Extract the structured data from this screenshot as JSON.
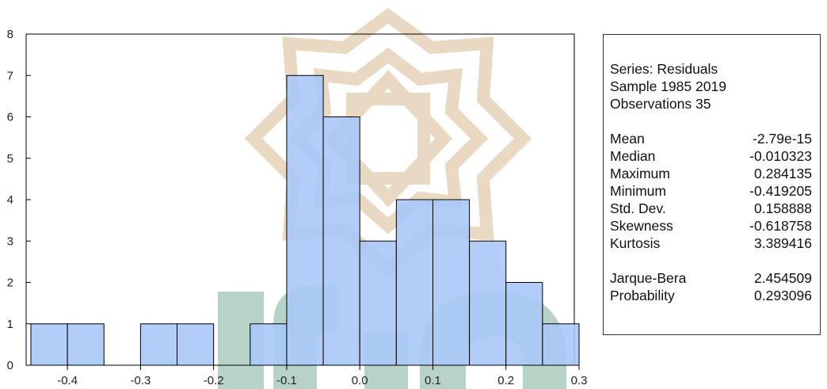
{
  "chart_data": {
    "type": "bar",
    "subtype": "histogram",
    "bin_width": 0.05,
    "bins": [
      {
        "x0": -0.45,
        "x1": -0.4,
        "count": 1
      },
      {
        "x0": -0.4,
        "x1": -0.35,
        "count": 1
      },
      {
        "x0": -0.35,
        "x1": -0.3,
        "count": 0
      },
      {
        "x0": -0.3,
        "x1": -0.25,
        "count": 1
      },
      {
        "x0": -0.25,
        "x1": -0.2,
        "count": 1
      },
      {
        "x0": -0.2,
        "x1": -0.15,
        "count": 0
      },
      {
        "x0": -0.15,
        "x1": -0.1,
        "count": 1
      },
      {
        "x0": -0.1,
        "x1": -0.05,
        "count": 7
      },
      {
        "x0": -0.05,
        "x1": 0.0,
        "count": 6
      },
      {
        "x0": 0.0,
        "x1": 0.05,
        "count": 3
      },
      {
        "x0": 0.05,
        "x1": 0.1,
        "count": 4
      },
      {
        "x0": 0.1,
        "x1": 0.15,
        "count": 4
      },
      {
        "x0": 0.15,
        "x1": 0.2,
        "count": 3
      },
      {
        "x0": 0.2,
        "x1": 0.25,
        "count": 2
      },
      {
        "x0": 0.25,
        "x1": 0.3,
        "count": 1
      }
    ],
    "xlim": [
      -0.45,
      0.3
    ],
    "ylim": [
      0,
      8
    ],
    "x_ticks": [
      {
        "value": -0.4,
        "label": "-0.4"
      },
      {
        "value": -0.3,
        "label": "-0.3"
      },
      {
        "value": -0.2,
        "label": "-0.2"
      },
      {
        "value": -0.1,
        "label": "-0.1"
      },
      {
        "value": 0.0,
        "label": "0.0"
      },
      {
        "value": 0.1,
        "label": "0.1"
      },
      {
        "value": 0.2,
        "label": "0.2"
      },
      {
        "value": 0.3,
        "label": "0.3"
      }
    ],
    "y_ticks": [
      0,
      1,
      2,
      3,
      4,
      5,
      6,
      7,
      8
    ],
    "bar_color": "#a9c8f7",
    "bar_edge_color": "#000000",
    "grid": false,
    "legend": "none",
    "title": "",
    "xlabel": "",
    "ylabel": ""
  },
  "stats": {
    "series_line": "Series: Residuals",
    "sample_line": "Sample 1985 2019",
    "observations_line": "Observations 35",
    "rows_group1": [
      {
        "label": "Mean",
        "value": "-2.79e-15"
      },
      {
        "label": "Median",
        "value": "-0.010323"
      },
      {
        "label": "Maximum",
        "value": "0.284135"
      },
      {
        "label": "Minimum",
        "value": "-0.419205"
      },
      {
        "label": "Std. Dev.",
        "value": "0.158888"
      },
      {
        "label": "Skewness",
        "value": "-0.618758"
      },
      {
        "label": "Kurtosis",
        "value": "3.389416"
      }
    ],
    "rows_group2": [
      {
        "label": "Jarque-Bera",
        "value": "2.454509"
      },
      {
        "label": "Probability",
        "value": "0.293096"
      }
    ]
  },
  "watermark": {
    "gold_color": "#e6d3b8",
    "green_color": "#9fc4b3"
  }
}
